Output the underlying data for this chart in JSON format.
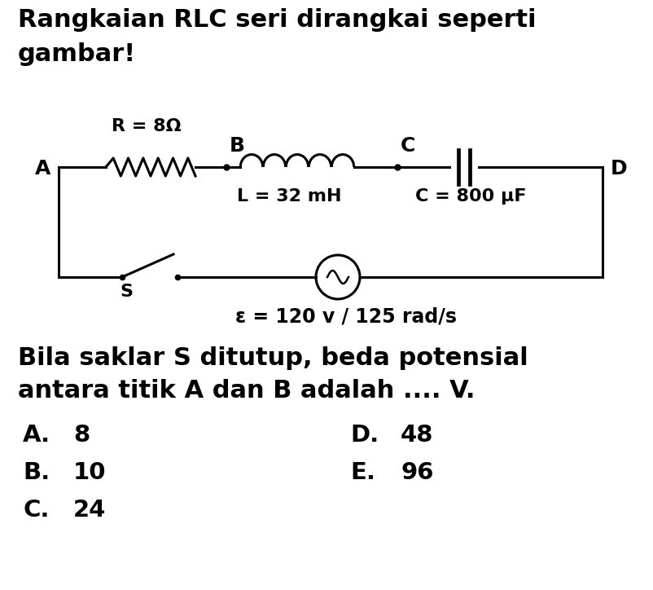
{
  "title_line1": "Rangkaian RLC seri dirangkai seperti",
  "title_line2": "gambar!",
  "question_line1": "Bila saklar S ditutup, beda potensial",
  "question_line2": "antara titik A dan B adalah .... V.",
  "options_left_label": [
    "A.",
    "B.",
    "C."
  ],
  "options_left_value": [
    "8",
    "10",
    "24"
  ],
  "options_right_label": [
    "D.",
    "E."
  ],
  "options_right_value": [
    "48",
    "96"
  ],
  "R_label": "R = 8Ω",
  "L_label": "L = 32 mH",
  "C_label": "C = 800 μF",
  "source_label": "ε = 120 v / 125 rad/s",
  "switch_label": "S",
  "node_A": "A",
  "node_B": "B",
  "node_C": "C",
  "node_D": "D",
  "bg_color": "#ffffff",
  "text_color": "#000000",
  "line_color": "#000000",
  "font_size_title": 22,
  "font_size_circuit": 15,
  "font_size_options": 21
}
